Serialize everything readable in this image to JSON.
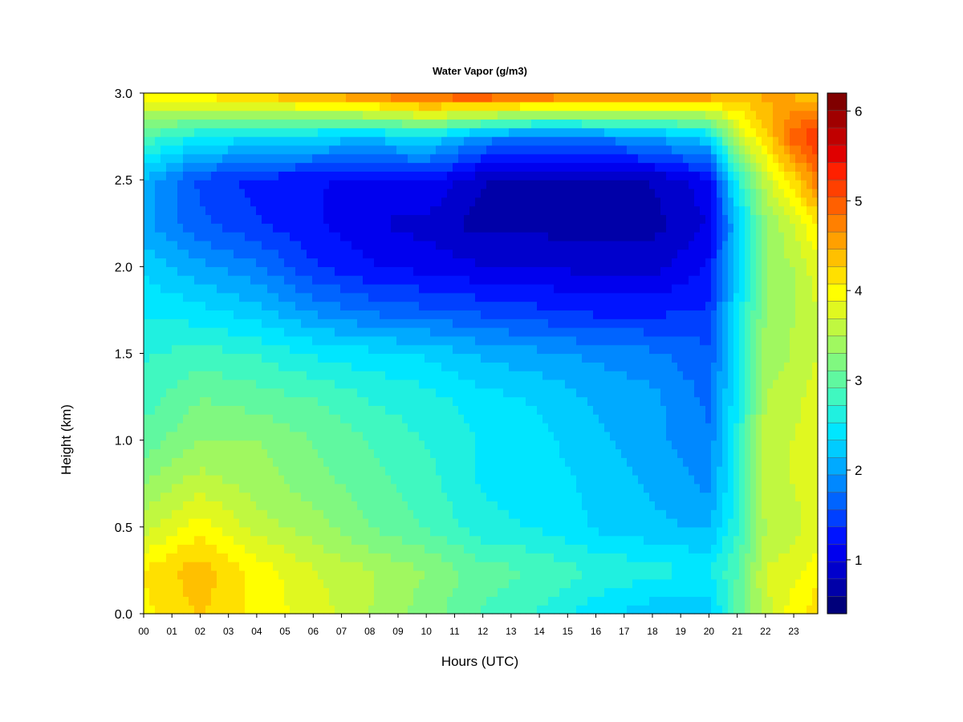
{
  "chart_data": {
    "type": "heatmap",
    "title": "Water Vapor (g/m3)",
    "xlabel": "Hours (UTC)",
    "ylabel": "Height (km)",
    "x_tick_labels": [
      "00",
      "01",
      "02",
      "03",
      "04",
      "05",
      "06",
      "07",
      "08",
      "09",
      "10",
      "11",
      "12",
      "13",
      "14",
      "15",
      "16",
      "17",
      "18",
      "19",
      "20",
      "21",
      "22",
      "23"
    ],
    "xlim": [
      0,
      23.85
    ],
    "y_ticks": [
      0.0,
      0.5,
      1.0,
      1.5,
      2.0,
      2.5,
      3.0
    ],
    "y_tick_labels": [
      "0.0",
      "0.5",
      "1.0",
      "1.5",
      "2.0",
      "2.5",
      "3.0"
    ],
    "ylim": [
      0,
      3.0
    ],
    "colorbar": {
      "range": [
        0.4,
        6.2
      ],
      "ticks": [
        1,
        2,
        3,
        4,
        5,
        6
      ],
      "tick_labels": [
        "1",
        "2",
        "3",
        "4",
        "5",
        "6"
      ],
      "colors": [
        "#00007a",
        "#0000a8",
        "#0000cc",
        "#0000ee",
        "#0014ff",
        "#0040ff",
        "#0064ff",
        "#0088ff",
        "#00aaff",
        "#00ccff",
        "#00e6ff",
        "#20f0e0",
        "#40f8c0",
        "#60f8a0",
        "#80f880",
        "#a0f860",
        "#c0f840",
        "#e0f820",
        "#ffff00",
        "#ffe000",
        "#ffc000",
        "#ffa000",
        "#ff8000",
        "#ff6000",
        "#ff4000",
        "#ff2000",
        "#e00000",
        "#c00000",
        "#a00000",
        "#800000"
      ]
    },
    "grid_hours": [
      0,
      2,
      4,
      6,
      8,
      10,
      12,
      14,
      16,
      18,
      20,
      21,
      22,
      23,
      23.85
    ],
    "grid_heights": [
      0.0,
      0.25,
      0.5,
      0.75,
      1.0,
      1.25,
      1.5,
      1.75,
      2.0,
      2.25,
      2.5,
      2.75,
      3.0
    ],
    "values": [
      [
        4.0,
        4.1,
        3.6,
        3.3,
        3.0,
        2.8,
        2.7,
        2.5,
        2.3,
        2.0,
        2.1,
        2.9,
        4.1
      ],
      [
        4.3,
        4.4,
        4.0,
        3.6,
        3.3,
        3.1,
        2.8,
        2.4,
        2.0,
        1.6,
        1.5,
        2.5,
        4.2
      ],
      [
        4.0,
        4.0,
        3.6,
        3.4,
        3.3,
        3.0,
        2.7,
        2.2,
        1.8,
        1.4,
        1.3,
        2.4,
        4.4
      ],
      [
        3.8,
        3.7,
        3.4,
        3.2,
        3.1,
        2.9,
        2.5,
        1.9,
        1.4,
        1.2,
        1.2,
        2.3,
        4.6
      ],
      [
        3.5,
        3.5,
        3.1,
        3.0,
        2.9,
        2.7,
        2.4,
        1.7,
        1.2,
        1.0,
        1.1,
        2.2,
        4.8
      ],
      [
        3.2,
        3.3,
        2.9,
        2.8,
        2.7,
        2.6,
        2.3,
        1.6,
        1.1,
        0.9,
        1.2,
        2.4,
        5.1
      ],
      [
        2.9,
        3.0,
        2.6,
        2.5,
        2.5,
        2.4,
        2.1,
        1.5,
        1.0,
        0.7,
        0.8,
        1.9,
        5.2
      ],
      [
        2.7,
        2.9,
        2.5,
        2.4,
        2.4,
        2.3,
        2.0,
        1.4,
        1.0,
        0.7,
        0.7,
        1.7,
        5.0
      ],
      [
        2.4,
        2.7,
        2.3,
        2.3,
        2.2,
        2.1,
        1.9,
        1.3,
        0.9,
        0.7,
        0.7,
        1.8,
        4.9
      ],
      [
        2.2,
        2.6,
        2.2,
        2.1,
        2.0,
        2.0,
        1.8,
        1.3,
        0.9,
        0.7,
        0.8,
        2.0,
        4.8
      ],
      [
        2.2,
        2.5,
        2.1,
        1.9,
        1.8,
        1.7,
        1.6,
        1.4,
        1.2,
        1.0,
        1.1,
        2.3,
        4.7
      ],
      [
        3.0,
        2.9,
        2.7,
        2.6,
        2.6,
        2.5,
        2.4,
        2.4,
        2.3,
        2.2,
        2.6,
        3.6,
        4.4
      ],
      [
        3.6,
        3.7,
        3.5,
        3.6,
        3.6,
        3.5,
        3.4,
        3.3,
        3.3,
        3.3,
        3.6,
        4.2,
        4.5
      ],
      [
        4.0,
        3.8,
        3.6,
        3.7,
        3.7,
        3.6,
        3.5,
        3.5,
        3.5,
        3.7,
        4.2,
        5.0,
        4.4
      ],
      [
        4.2,
        4.0,
        3.8,
        3.8,
        3.9,
        3.8,
        3.7,
        3.7,
        3.8,
        4.1,
        4.8,
        5.2,
        4.2
      ]
    ]
  }
}
